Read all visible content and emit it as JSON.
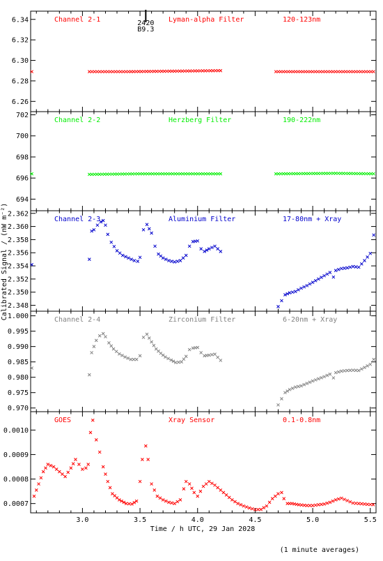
{
  "chart_data": [
    {
      "type": "scatter",
      "title": "",
      "xlabel": "",
      "ylabel": "",
      "annotations": [
        "Channel 2-1",
        "Lyman-alpha Filter",
        "120-123nm"
      ],
      "color": "#ff0000",
      "xlim": [
        2.55,
        5.55
      ],
      "ylim": [
        6.25,
        6.348
      ],
      "yticks": [
        "6.26",
        "6.28",
        "6.30",
        "6.32",
        "6.34"
      ],
      "segments": [
        {
          "x": [
            2.55,
            2.56
          ],
          "y": [
            6.289,
            6.289
          ]
        },
        {
          "x": [
            3.06,
            3.4,
            3.8,
            4.2
          ],
          "y": [
            6.289,
            6.289,
            6.2895,
            6.29
          ]
        },
        {
          "x": [
            4.68,
            5.0,
            5.55
          ],
          "y": [
            6.289,
            6.289,
            6.289
          ]
        }
      ],
      "marker": {
        "x": 3.55,
        "labels": [
          "2420",
          "B9.3"
        ]
      }
    },
    {
      "type": "scatter",
      "title": "",
      "xlabel": "",
      "ylabel": "",
      "annotations": [
        "Channel 2-2",
        "Herzberg Filter",
        "190-222nm"
      ],
      "color": "#00ee00",
      "xlim": [
        2.55,
        5.55
      ],
      "ylim": [
        692.9,
        702.3
      ],
      "yticks": [
        "694",
        "696",
        "698",
        "700",
        "702"
      ],
      "segments": [
        {
          "x": [
            2.55,
            2.56
          ],
          "y": [
            696.4,
            696.4
          ]
        },
        {
          "x": [
            3.06,
            3.5,
            4.2
          ],
          "y": [
            696.35,
            696.4,
            696.4
          ]
        },
        {
          "x": [
            4.68,
            5.2,
            5.55
          ],
          "y": [
            696.4,
            696.45,
            696.4
          ]
        }
      ]
    },
    {
      "type": "scatter",
      "title": "",
      "xlabel": "",
      "ylabel": "Calibrated Signal / (nW m⁻²)",
      "annotations": [
        "Channel 2-3",
        "Aluminium Filter",
        "17-80nm + Xray"
      ],
      "color": "#0000cc",
      "xlim": [
        2.55,
        5.55
      ],
      "ylim": [
        2.3471,
        2.3624
      ],
      "yticks": [
        "2.348",
        "2.350",
        "2.352",
        "2.354",
        "2.356",
        "2.358",
        "2.360",
        "2.362"
      ],
      "segments": [
        {
          "x": [
            2.55,
            2.56
          ],
          "y": [
            2.3542,
            2.3542
          ]
        },
        {
          "x": [
            3.06,
            3.08,
            3.1,
            3.13,
            3.16,
            3.18,
            3.2,
            3.22,
            3.25,
            3.3,
            3.35,
            3.4,
            3.45,
            3.48,
            3.5,
            3.53,
            3.56,
            3.6,
            3.63,
            3.66,
            3.7,
            3.75,
            3.8,
            3.85,
            3.9,
            3.93,
            3.96,
            4.0,
            4.03,
            4.06,
            4.1,
            4.15,
            4.2
          ],
          "y": [
            2.355,
            2.3593,
            2.3595,
            2.3602,
            2.3607,
            2.3609,
            2.3602,
            2.3588,
            2.3576,
            2.3563,
            2.3556,
            2.3552,
            2.3548,
            2.3547,
            2.3553,
            2.3595,
            2.3603,
            2.359,
            2.357,
            2.3558,
            2.3552,
            2.3548,
            2.3546,
            2.3548,
            2.3556,
            2.357,
            2.3577,
            2.3578,
            2.3566,
            2.3562,
            2.3566,
            2.357,
            2.3562
          ]
        },
        {
          "x": [
            4.68,
            4.7,
            4.73,
            4.76,
            4.8,
            4.85,
            4.9,
            4.95,
            5.0,
            5.05,
            5.1,
            5.15,
            5.18,
            5.2,
            5.25,
            5.3,
            5.35,
            5.4,
            5.45,
            5.5,
            5.53,
            5.55
          ],
          "y": [
            2.3472,
            2.3478,
            2.3487,
            2.3496,
            2.3499,
            2.3501,
            2.3506,
            2.351,
            2.3515,
            2.352,
            2.3525,
            2.353,
            2.3523,
            2.3533,
            2.3536,
            2.3537,
            2.3539,
            2.3538,
            2.3548,
            2.3559,
            2.3587,
            2.3605
          ]
        }
      ]
    },
    {
      "type": "scatter",
      "title": "",
      "xlabel": "",
      "ylabel": "",
      "annotations": [
        "Channel 2-4",
        "Zirconium Filter",
        "6-20nm + Xray"
      ],
      "color": "#808080",
      "xlim": [
        2.55,
        5.55
      ],
      "ylim": [
        0.9688,
        1.0015
      ],
      "yticks": [
        "0.970",
        "0.975",
        "0.980",
        "0.985",
        "0.990",
        "0.995",
        "1.000"
      ],
      "segments": [
        {
          "x": [
            2.55,
            2.56
          ],
          "y": [
            0.983,
            0.983
          ]
        },
        {
          "x": [
            3.06,
            3.08,
            3.12,
            3.15,
            3.18,
            3.2,
            3.23,
            3.27,
            3.32,
            3.37,
            3.42,
            3.47,
            3.5,
            3.53,
            3.56,
            3.6,
            3.64,
            3.68,
            3.72,
            3.77,
            3.81,
            3.86,
            3.9,
            3.93,
            3.96,
            4.0,
            4.03,
            4.06,
            4.1,
            4.15,
            4.2
          ],
          "y": [
            0.9808,
            0.988,
            0.992,
            0.9935,
            0.9942,
            0.9932,
            0.9912,
            0.9892,
            0.9876,
            0.9866,
            0.9858,
            0.9858,
            0.987,
            0.993,
            0.994,
            0.9915,
            0.9892,
            0.9878,
            0.9866,
            0.9856,
            0.9848,
            0.985,
            0.9868,
            0.989,
            0.9895,
            0.9897,
            0.988,
            0.987,
            0.9872,
            0.9875,
            0.9855
          ]
        },
        {
          "x": [
            4.68,
            4.7,
            4.73,
            4.76,
            4.8,
            4.85,
            4.9,
            4.95,
            5.0,
            5.05,
            5.1,
            5.15,
            5.18,
            5.2,
            5.25,
            5.3,
            5.35,
            5.4,
            5.45,
            5.5,
            5.53,
            5.55
          ],
          "y": [
            0.969,
            0.971,
            0.973,
            0.975,
            0.976,
            0.9768,
            0.9772,
            0.978,
            0.9788,
            0.9795,
            0.9802,
            0.981,
            0.9798,
            0.9815,
            0.982,
            0.9822,
            0.9823,
            0.9822,
            0.9832,
            0.9842,
            0.9858,
            0.987
          ]
        }
      ]
    },
    {
      "type": "scatter",
      "title": "",
      "xlabel": "Time / h UTC, 29 Jan 2028",
      "ylabel": "",
      "annotations": [
        "GOES",
        "Xray Sensor",
        "0.1-0.8nm"
      ],
      "color": "#ff0000",
      "xlim": [
        2.55,
        5.55
      ],
      "ylim": [
        0.000662,
        0.001075
      ],
      "yticks": [
        "0.0007",
        "0.0008",
        "0.0009",
        "0.0010"
      ],
      "xticks": [
        "3.0",
        "3.5",
        "4.0",
        "4.5",
        "5.0",
        "5.5"
      ],
      "segments": [
        {
          "x": [
            2.55,
            2.58,
            2.62,
            2.66,
            2.7,
            2.75,
            2.8,
            2.85,
            2.9,
            2.94,
            2.97,
            3.0,
            3.03,
            3.05,
            3.07,
            3.09,
            3.12,
            3.15,
            3.18,
            3.22,
            3.26,
            3.32,
            3.38,
            3.43,
            3.47,
            3.5,
            3.52,
            3.55,
            3.57,
            3.6,
            3.65,
            3.7,
            3.75,
            3.8,
            3.85,
            3.88,
            3.9,
            3.93,
            3.97,
            4.0,
            4.05,
            4.1,
            4.15,
            4.2,
            4.25,
            4.3,
            4.35,
            4.4,
            4.45,
            4.5,
            4.55,
            4.6,
            4.65,
            4.7,
            4.73,
            4.75,
            4.78,
            4.82,
            4.88,
            4.95,
            5.0,
            5.05,
            5.1,
            5.15,
            5.2,
            5.25,
            5.3,
            5.35,
            5.4,
            5.45,
            5.5,
            5.55
          ],
          "y": [
            0.0007,
            0.00073,
            0.00078,
            0.00083,
            0.00086,
            0.00085,
            0.00083,
            0.00081,
            0.000845,
            0.00088,
            0.00086,
            0.00084,
            0.000845,
            0.00086,
            0.00099,
            0.00104,
            0.00096,
            0.00091,
            0.00085,
            0.00079,
            0.00074,
            0.000715,
            0.0007,
            0.000698,
            0.00071,
            0.00079,
            0.00088,
            0.000935,
            0.00088,
            0.00078,
            0.00073,
            0.000715,
            0.000705,
            0.0007,
            0.000715,
            0.00076,
            0.00079,
            0.00078,
            0.000745,
            0.00073,
            0.00077,
            0.00079,
            0.000775,
            0.000755,
            0.000735,
            0.000715,
            0.0007,
            0.00069,
            0.000682,
            0.000675,
            0.000676,
            0.00069,
            0.00072,
            0.00074,
            0.000745,
            0.00072,
            0.0007,
            0.0007,
            0.000695,
            0.000692,
            0.000692,
            0.000695,
            0.000698,
            0.000705,
            0.000715,
            0.000722,
            0.000712,
            0.000702,
            0.0007,
            0.000698,
            0.000696,
            0.000695
          ]
        }
      ]
    }
  ],
  "footer_note": "(1 minute averages)"
}
